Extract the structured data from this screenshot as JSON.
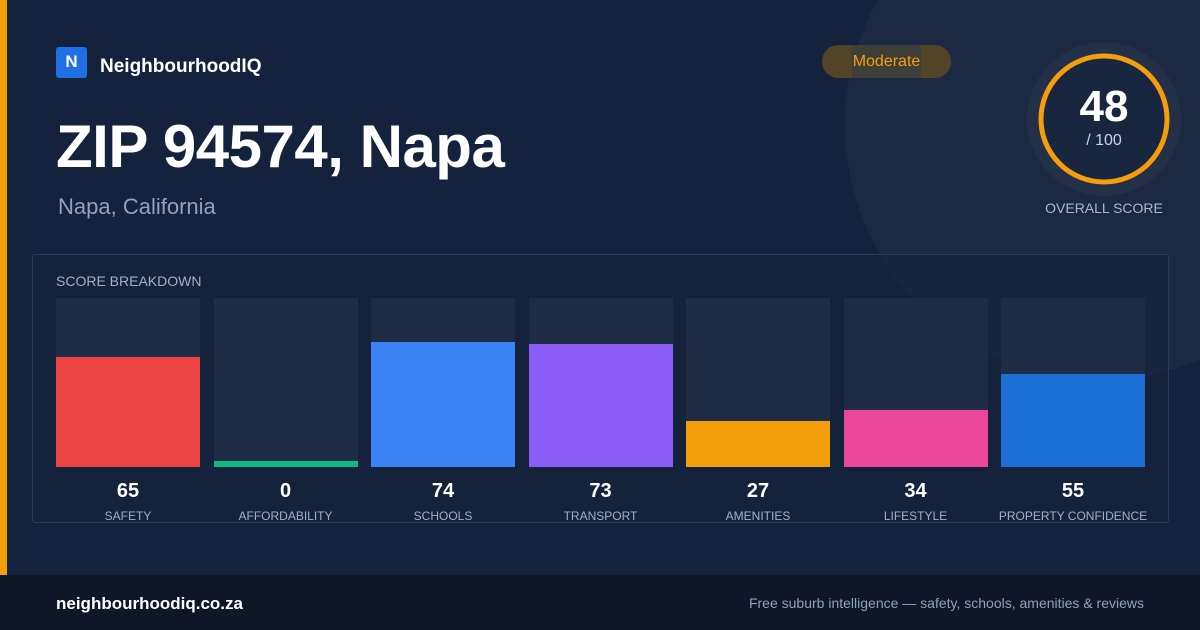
{
  "brand": {
    "logo_letter": "N",
    "name": "NeighbourhoodIQ"
  },
  "badge": {
    "label": "Moderate",
    "color": "#f59e0b"
  },
  "title": "ZIP 94574, Napa",
  "subtitle": "Napa, California",
  "overall": {
    "value": "48",
    "max_label": "/ 100",
    "caption": "OVERALL SCORE",
    "score": 48,
    "max": 100,
    "ring_color": "#f59e0b"
  },
  "breakdown": {
    "title": "SCORE BREAKDOWN",
    "items": [
      {
        "label": "SAFETY",
        "value": 65,
        "color": "#ef4444"
      },
      {
        "label": "AFFORDABILITY",
        "value": 0,
        "color": "#10b981"
      },
      {
        "label": "SCHOOLS",
        "value": 74,
        "color": "#3b82f6"
      },
      {
        "label": "TRANSPORT",
        "value": 73,
        "color": "#8b5cf6"
      },
      {
        "label": "AMENITIES",
        "value": 27,
        "color": "#f59e0b"
      },
      {
        "label": "LIFESTYLE",
        "value": 34,
        "color": "#ec4899"
      },
      {
        "label": "PROPERTY CONFIDENCE",
        "value": 55,
        "color": "#1d6fd8"
      }
    ]
  },
  "footer": {
    "site": "neighbourhoodiq.co.za",
    "tagline": "Free suburb intelligence — safety, schools, amenities & reviews"
  }
}
